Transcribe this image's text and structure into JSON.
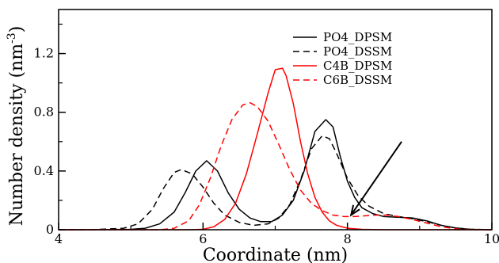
{
  "chart_data": {
    "type": "line",
    "xlabel": "Coordinate (nm)",
    "ylabel_main": "Number density (nm",
    "ylabel_exp": "-3",
    "ylabel_close": ")",
    "xlim": [
      4,
      10
    ],
    "ylim": [
      0,
      1.5
    ],
    "xticks": [
      4,
      6,
      8,
      10
    ],
    "xtick_labels": [
      "4",
      "6",
      "8",
      "10"
    ],
    "yticks": [
      0,
      0.4,
      0.8,
      1.2
    ],
    "ytick_labels": [
      "0",
      "0.4",
      "0.8",
      "1.2"
    ],
    "grid": false,
    "legend_position": "top-right",
    "series": [
      {
        "name": "PO4_DPSM",
        "color": "#000000",
        "dash": "solid",
        "points": [
          [
            4.0,
            0
          ],
          [
            4.5,
            0
          ],
          [
            5.0,
            0.003
          ],
          [
            5.2,
            0.01
          ],
          [
            5.4,
            0.04
          ],
          [
            5.6,
            0.12
          ],
          [
            5.75,
            0.25
          ],
          [
            5.9,
            0.4
          ],
          [
            6.05,
            0.47
          ],
          [
            6.2,
            0.4
          ],
          [
            6.35,
            0.25
          ],
          [
            6.5,
            0.14
          ],
          [
            6.65,
            0.08
          ],
          [
            6.8,
            0.055
          ],
          [
            6.95,
            0.055
          ],
          [
            7.1,
            0.1
          ],
          [
            7.25,
            0.2
          ],
          [
            7.4,
            0.4
          ],
          [
            7.55,
            0.67
          ],
          [
            7.7,
            0.75
          ],
          [
            7.8,
            0.7
          ],
          [
            7.9,
            0.5
          ],
          [
            8.0,
            0.33
          ],
          [
            8.1,
            0.22
          ],
          [
            8.2,
            0.15
          ],
          [
            8.35,
            0.11
          ],
          [
            8.5,
            0.09
          ],
          [
            8.7,
            0.085
          ],
          [
            8.9,
            0.08
          ],
          [
            9.1,
            0.06
          ],
          [
            9.3,
            0.03
          ],
          [
            9.5,
            0.012
          ],
          [
            9.7,
            0.003
          ],
          [
            10.0,
            0
          ]
        ]
      },
      {
        "name": "PO4_DSSM",
        "color": "#000000",
        "dash": "dashed",
        "points": [
          [
            4.0,
            0
          ],
          [
            4.5,
            0.001
          ],
          [
            4.9,
            0.01
          ],
          [
            5.1,
            0.04
          ],
          [
            5.3,
            0.14
          ],
          [
            5.45,
            0.28
          ],
          [
            5.6,
            0.39
          ],
          [
            5.7,
            0.41
          ],
          [
            5.85,
            0.38
          ],
          [
            6.0,
            0.29
          ],
          [
            6.15,
            0.18
          ],
          [
            6.3,
            0.1
          ],
          [
            6.5,
            0.05
          ],
          [
            6.7,
            0.03
          ],
          [
            6.9,
            0.04
          ],
          [
            7.05,
            0.08
          ],
          [
            7.2,
            0.17
          ],
          [
            7.35,
            0.34
          ],
          [
            7.5,
            0.55
          ],
          [
            7.65,
            0.64
          ],
          [
            7.75,
            0.62
          ],
          [
            7.85,
            0.52
          ],
          [
            8.0,
            0.35
          ],
          [
            8.15,
            0.23
          ],
          [
            8.3,
            0.16
          ],
          [
            8.5,
            0.11
          ],
          [
            8.7,
            0.09
          ],
          [
            8.9,
            0.075
          ],
          [
            9.1,
            0.055
          ],
          [
            9.3,
            0.03
          ],
          [
            9.5,
            0.012
          ],
          [
            9.7,
            0.003
          ],
          [
            10.0,
            0
          ]
        ]
      },
      {
        "name": "C4B_DPSM",
        "color": "#ff0000",
        "dash": "solid",
        "points": [
          [
            4.0,
            0
          ],
          [
            5.8,
            0
          ],
          [
            6.0,
            0.003
          ],
          [
            6.15,
            0.02
          ],
          [
            6.3,
            0.07
          ],
          [
            6.45,
            0.18
          ],
          [
            6.6,
            0.38
          ],
          [
            6.75,
            0.65
          ],
          [
            6.9,
            0.93
          ],
          [
            7.0,
            1.09
          ],
          [
            7.1,
            1.1
          ],
          [
            7.15,
            1.05
          ],
          [
            7.25,
            0.86
          ],
          [
            7.35,
            0.6
          ],
          [
            7.45,
            0.38
          ],
          [
            7.55,
            0.22
          ],
          [
            7.65,
            0.12
          ],
          [
            7.75,
            0.06
          ],
          [
            7.85,
            0.03
          ],
          [
            8.0,
            0.01
          ],
          [
            8.2,
            0.003
          ],
          [
            8.5,
            0
          ],
          [
            10.0,
            0
          ]
        ]
      },
      {
        "name": "C6B_DSSM",
        "color": "#ff0000",
        "dash": "dashed",
        "points": [
          [
            4.0,
            0
          ],
          [
            5.4,
            0
          ],
          [
            5.6,
            0.01
          ],
          [
            5.8,
            0.06
          ],
          [
            5.95,
            0.17
          ],
          [
            6.1,
            0.35
          ],
          [
            6.25,
            0.57
          ],
          [
            6.4,
            0.75
          ],
          [
            6.55,
            0.85
          ],
          [
            6.65,
            0.865
          ],
          [
            6.75,
            0.84
          ],
          [
            6.9,
            0.74
          ],
          [
            7.05,
            0.58
          ],
          [
            7.2,
            0.41
          ],
          [
            7.35,
            0.27
          ],
          [
            7.5,
            0.18
          ],
          [
            7.65,
            0.13
          ],
          [
            7.8,
            0.1
          ],
          [
            7.95,
            0.09
          ],
          [
            8.1,
            0.09
          ],
          [
            8.25,
            0.095
          ],
          [
            8.4,
            0.1
          ],
          [
            8.55,
            0.1
          ],
          [
            8.7,
            0.09
          ],
          [
            8.9,
            0.07
          ],
          [
            9.1,
            0.045
          ],
          [
            9.3,
            0.02
          ],
          [
            9.5,
            0.006
          ],
          [
            9.7,
            0.001
          ],
          [
            10.0,
            0
          ]
        ]
      }
    ],
    "annotations": [
      {
        "type": "arrow",
        "from": [
          8.75,
          0.6
        ],
        "to": [
          8.05,
          0.1
        ]
      }
    ]
  }
}
